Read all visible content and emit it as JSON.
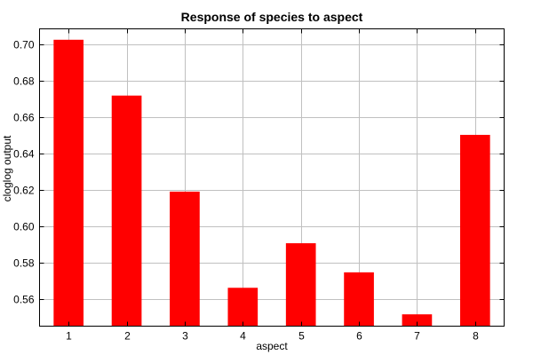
{
  "chart_data": {
    "type": "bar",
    "title": "Response of species to aspect",
    "xlabel": "aspect",
    "ylabel": "cloglog output",
    "categories": [
      "1",
      "2",
      "3",
      "4",
      "5",
      "6",
      "7",
      "8"
    ],
    "values": [
      0.7025,
      0.6718,
      0.619,
      0.5661,
      0.5906,
      0.5746,
      0.5515,
      0.6502
    ],
    "ylim": [
      0.545,
      0.7085
    ],
    "yticks": [
      "0.56",
      "0.58",
      "0.60",
      "0.62",
      "0.64",
      "0.66",
      "0.68",
      "0.70"
    ],
    "grid": true,
    "bar_color": "#ff0000",
    "grid_color": "#c0c0c0"
  }
}
